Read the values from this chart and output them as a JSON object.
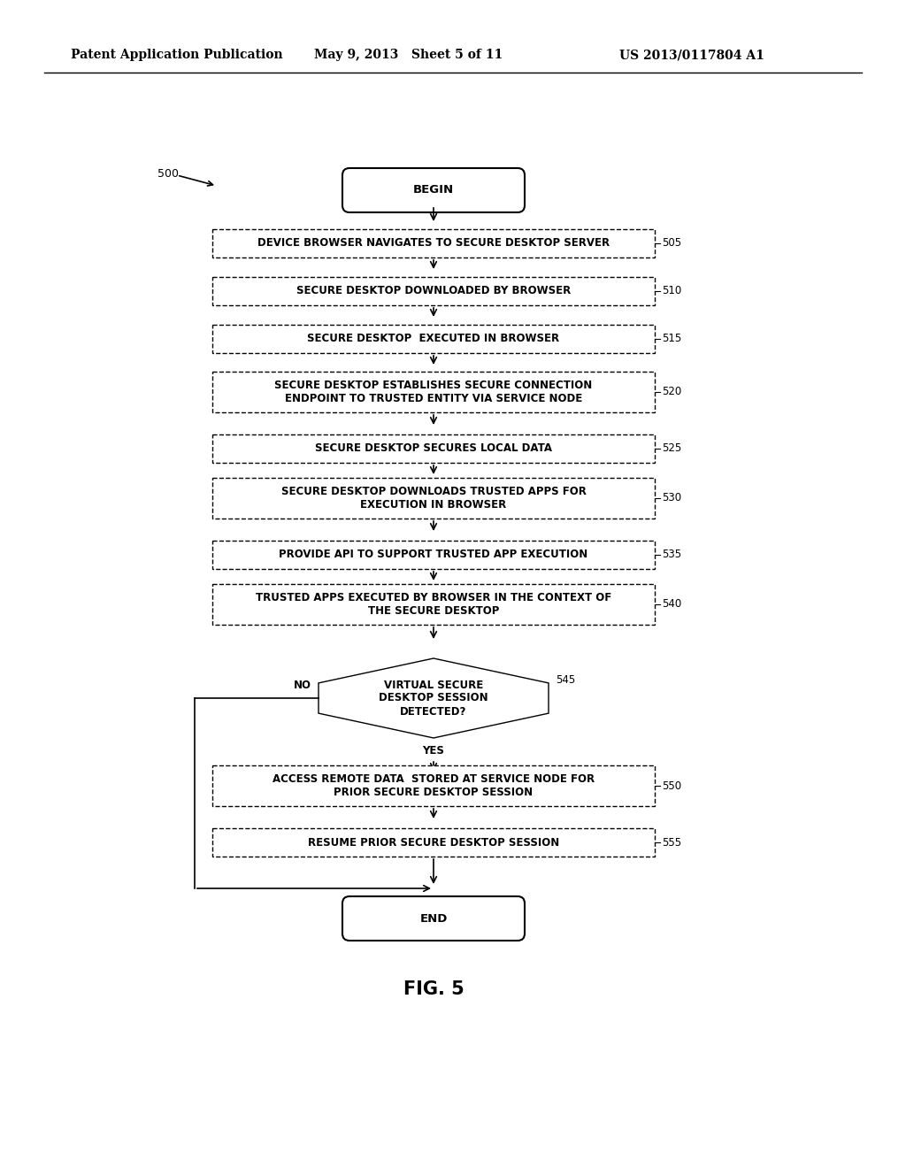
{
  "bg_color": "#ffffff",
  "header_left": "Patent Application Publication",
  "header_mid": "May 9, 2013   Sheet 5 of 11",
  "header_right": "US 2013/0117804 A1",
  "fig_label": "FIG. 5",
  "diagram_label": "500"
}
